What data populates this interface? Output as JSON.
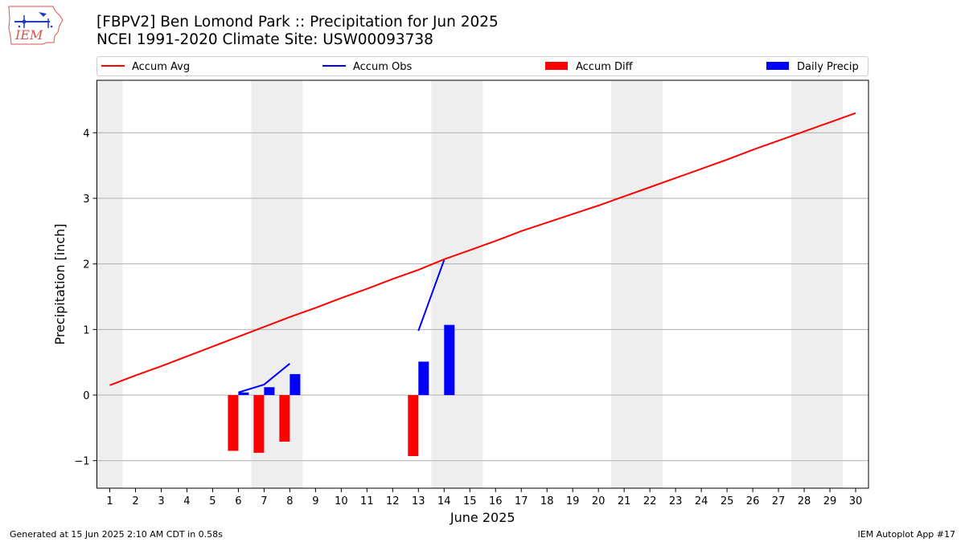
{
  "header": {
    "title_line1": "[FBPV2] Ben Lomond Park :: Precipitation for Jun 2025",
    "title_line2": "NCEI 1991-2020 Climate Site: USW00093738"
  },
  "logo": {
    "text": "IEM",
    "icon": "iem-iowa-logo-icon"
  },
  "footer": {
    "generated": "Generated at 15 Jun 2025 2:10 AM CDT in 0.58s",
    "app": "IEM Autoplot App #17"
  },
  "colors": {
    "accum_avg": "#ff0000",
    "accum_obs": "#0000ff",
    "accum_diff": "#ff0000",
    "daily_precip": "#0000ff",
    "weekend_band": "#eeeeee",
    "grid": "#b0b0b0"
  },
  "chart_data": {
    "type": "bar",
    "xlabel": "June 2025",
    "ylabel": "Precipitation [inch]",
    "x": [
      1,
      2,
      3,
      4,
      5,
      6,
      7,
      8,
      9,
      10,
      11,
      12,
      13,
      14,
      15,
      16,
      17,
      18,
      19,
      20,
      21,
      22,
      23,
      24,
      25,
      26,
      27,
      28,
      29,
      30
    ],
    "xticks": [
      "1",
      "2",
      "3",
      "4",
      "5",
      "6",
      "7",
      "8",
      "9",
      "10",
      "11",
      "12",
      "13",
      "14",
      "15",
      "16",
      "17",
      "18",
      "19",
      "20",
      "21",
      "22",
      "23",
      "24",
      "25",
      "26",
      "27",
      "28",
      "29",
      "30"
    ],
    "ylim": [
      -1.42,
      4.8
    ],
    "yticks": [
      -1,
      0,
      1,
      2,
      3,
      4
    ],
    "ytick_labels": [
      "−1",
      "0",
      "1",
      "2",
      "3",
      "4"
    ],
    "grid": "horizontal",
    "legend": [
      "Accum Avg",
      "Accum Obs",
      "Accum Diff",
      "Daily Precip"
    ],
    "legend_placement": "top, above plot",
    "weekend_days": [
      1,
      7,
      8,
      14,
      15,
      21,
      22,
      28,
      29
    ],
    "accum_avg": [
      0.15,
      0.3,
      0.44,
      0.59,
      0.74,
      0.89,
      1.04,
      1.19,
      1.33,
      1.48,
      1.62,
      1.77,
      1.91,
      2.07,
      2.21,
      2.35,
      2.5,
      2.63,
      2.76,
      2.89,
      3.03,
      3.17,
      3.31,
      3.45,
      3.59,
      3.74,
      3.88,
      4.02,
      4.16,
      4.3
    ],
    "accum_obs": [
      {
        "x": [
          6,
          7,
          8
        ],
        "y": [
          0.04,
          0.16,
          0.48
        ]
      },
      {
        "x": [
          13,
          14
        ],
        "y": [
          0.98,
          2.06
        ]
      }
    ],
    "accum_diff": [
      {
        "x": 6,
        "y": -0.85
      },
      {
        "x": 7,
        "y": -0.88
      },
      {
        "x": 8,
        "y": -0.71
      },
      {
        "x": 13,
        "y": -0.93
      }
    ],
    "daily_precip": [
      {
        "x": 6,
        "y": 0.04
      },
      {
        "x": 7,
        "y": 0.12
      },
      {
        "x": 8,
        "y": 0.32
      },
      {
        "x": 13,
        "y": 0.51
      },
      {
        "x": 14,
        "y": 1.07
      }
    ]
  }
}
